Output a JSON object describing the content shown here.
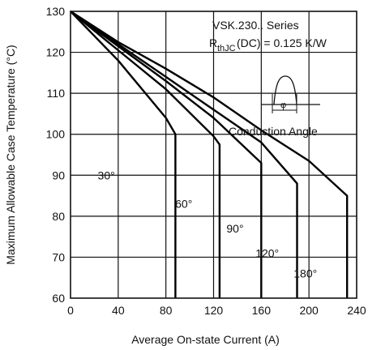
{
  "chart_data": {
    "type": "line",
    "xlabel": "Average On-state Current (A)",
    "ylabel": "Maximum Allowable Case Temperature (°C)",
    "xlim": [
      0,
      240
    ],
    "ylim": [
      60,
      130
    ],
    "xticks": [
      0,
      40,
      80,
      120,
      160,
      200,
      240
    ],
    "xtick_labels": [
      "0",
      "40",
      "80",
      "120",
      "160",
      "200",
      "240"
    ],
    "yticks": [
      60,
      70,
      80,
      90,
      100,
      110,
      120,
      130
    ],
    "grid": true,
    "annotations": {
      "series_title": "VSK.230.. Series",
      "rth_main": "R",
      "rth_sub": "thJC",
      "rth_rest": "(DC) = 0.125 K/W",
      "conduction_label": "Conduction Angle",
      "phi_symbol": "φ"
    },
    "series": [
      {
        "name": "30°",
        "x": [
          0,
          40,
          80,
          88,
          88
        ],
        "y": [
          130,
          118,
          104,
          100,
          60
        ]
      },
      {
        "name": "60°",
        "x": [
          0,
          40,
          80,
          120,
          125,
          125
        ],
        "y": [
          130,
          120.5,
          111,
          99.5,
          97.5,
          60
        ]
      },
      {
        "name": "90°",
        "x": [
          0,
          40,
          80,
          120,
          160,
          160
        ],
        "y": [
          130,
          121.5,
          113,
          104,
          93,
          60
        ]
      },
      {
        "name": "120°",
        "x": [
          0,
          40,
          80,
          120,
          160,
          190,
          190
        ],
        "y": [
          130,
          122,
          114,
          106,
          98,
          88,
          60
        ]
      },
      {
        "name": "180°",
        "x": [
          0,
          40,
          80,
          120,
          160,
          200,
          232,
          232
        ],
        "y": [
          130,
          122.5,
          116,
          109,
          101,
          93.5,
          85,
          60
        ]
      }
    ],
    "series_labels": [
      "30°",
      "60°",
      "90°",
      "120°",
      "180°"
    ]
  }
}
